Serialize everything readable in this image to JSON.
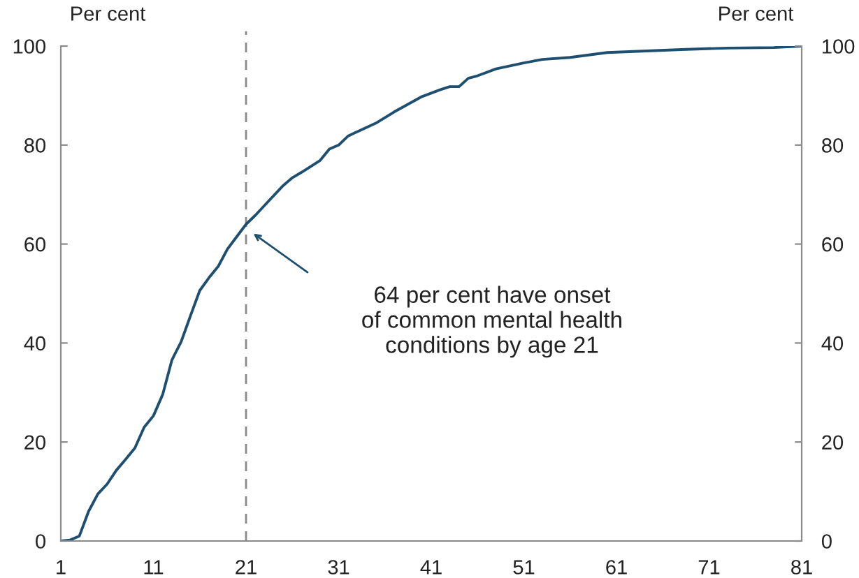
{
  "chart_data": {
    "type": "line",
    "ylabel": "Per cent",
    "y2label": "Per cent",
    "x": [
      1,
      2,
      3,
      4,
      5,
      6,
      7,
      8,
      9,
      10,
      11,
      12,
      13,
      14,
      15,
      16,
      17,
      18,
      19,
      20,
      21,
      22,
      23,
      25,
      26,
      27,
      29,
      30,
      31,
      32,
      33,
      35,
      37,
      40,
      42,
      43,
      44,
      45,
      46,
      48,
      51,
      53,
      56,
      60,
      68,
      73,
      78,
      81
    ],
    "series": [
      {
        "color": "#1f4f70",
        "values": [
          0,
          0.2,
          1,
          6,
          9.5,
          11.5,
          14.3,
          16.5,
          18.8,
          23,
          25.3,
          29.6,
          36.6,
          40.3,
          45.5,
          50.6,
          53.2,
          55.5,
          59,
          61.5,
          64,
          65.8,
          67.8,
          71.8,
          73.4,
          74.5,
          76.9,
          79.2,
          80,
          81.8,
          82.7,
          84.4,
          86.7,
          89.8,
          91.2,
          91.8,
          91.8,
          93.5,
          94,
          95.4,
          96.6,
          97.3,
          97.7,
          98.7,
          99.3,
          99.6,
          99.7,
          100
        ]
      }
    ],
    "xlim": [
      1,
      81
    ],
    "xticks": [
      1,
      11,
      21,
      31,
      41,
      51,
      61,
      71,
      81
    ],
    "ylim": [
      0,
      100
    ],
    "yticks": [
      0,
      20,
      40,
      60,
      80,
      100
    ],
    "y2lim": [
      0,
      100
    ],
    "y2ticks": [
      0,
      20,
      40,
      60,
      80,
      100
    ],
    "ref_lines": [
      {
        "axis": "x",
        "value": 21,
        "color": "#8a8a8a",
        "line_style": "dashed"
      }
    ],
    "annotations": [
      "64 per cent have onset\nof common mental health\nconditions by age 21"
    ],
    "grid": false
  }
}
